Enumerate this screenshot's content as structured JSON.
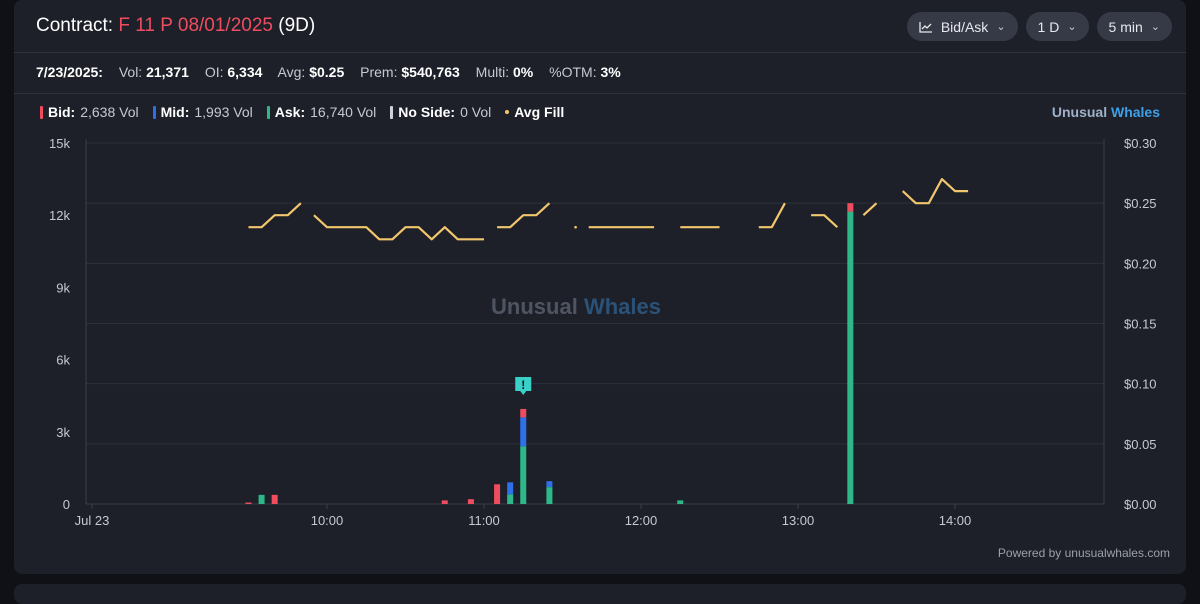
{
  "header": {
    "title_prefix": "Contract:",
    "contract": "F 11 P 08/01/2025",
    "days": "(9D)",
    "controls": [
      {
        "label": "Bid/Ask",
        "icon": "line-chart-icon"
      },
      {
        "label": "1 D"
      },
      {
        "label": "5 min"
      }
    ]
  },
  "stats": {
    "date": "7/23/2025:",
    "vol_label": "Vol:",
    "vol": "21,371",
    "oi_label": "OI:",
    "oi": "6,334",
    "avg_label": "Avg:",
    "avg": "$0.25",
    "prem_label": "Prem:",
    "prem": "$540,763",
    "multi_label": "Multi:",
    "multi": "0%",
    "otm_label": "%OTM:",
    "otm": "3%"
  },
  "legend": {
    "bid_label": "Bid:",
    "bid_value": "2,638 Vol",
    "mid_label": "Mid:",
    "mid_value": "1,993 Vol",
    "ask_label": "Ask:",
    "ask_value": "16,740 Vol",
    "noside_label": "No Side:",
    "noside_value": "0 Vol",
    "avgfill_label": "Avg Fill"
  },
  "brand": {
    "w1": "Unusual",
    "w2": "Whales"
  },
  "watermark": {
    "w1": "Unusual",
    "w2": "Whales"
  },
  "footer": "Powered by unusualwhales.com",
  "colors": {
    "bid": "#ef4c5f",
    "mid": "#2f6fe8",
    "ask": "#2eb88a",
    "noside": "#cfd2d9",
    "avg_fill": "#f2c66d"
  },
  "chart_data": {
    "type": "bar",
    "x_ticks": [
      "Jul 23",
      "10:00",
      "11:00",
      "12:00",
      "13:00",
      "14:00"
    ],
    "y_left_ticks": [
      "0",
      "3k",
      "6k",
      "9k",
      "12k",
      "15k"
    ],
    "y_right_ticks": [
      "$0.00",
      "$0.05",
      "$0.10",
      "$0.15",
      "$0.20",
      "$0.25",
      "$0.30"
    ],
    "ylim_left": [
      0,
      15000
    ],
    "ylim_right": [
      0,
      0.3
    ],
    "alert_marker": {
      "time": "11:15",
      "label": "!"
    },
    "bars": [
      {
        "time": "09:30",
        "ask": 0,
        "mid": 0,
        "bid": 60
      },
      {
        "time": "09:35",
        "ask": 380,
        "mid": 0,
        "bid": 0
      },
      {
        "time": "09:40",
        "ask": 0,
        "mid": 0,
        "bid": 380
      },
      {
        "time": "10:45",
        "ask": 0,
        "mid": 0,
        "bid": 150
      },
      {
        "time": "10:55",
        "ask": 0,
        "mid": 0,
        "bid": 200
      },
      {
        "time": "11:05",
        "ask": 0,
        "mid": 0,
        "bid": 820
      },
      {
        "time": "11:10",
        "ask": 400,
        "mid": 500,
        "bid": 0
      },
      {
        "time": "11:15",
        "ask": 2400,
        "mid": 1200,
        "bid": 350
      },
      {
        "time": "11:25",
        "ask": 700,
        "mid": 250,
        "bid": 0
      },
      {
        "time": "12:15",
        "ask": 150,
        "mid": 0,
        "bid": 0
      },
      {
        "time": "13:20",
        "ask": 12150,
        "mid": 0,
        "bid": 350
      }
    ],
    "avg_fill": [
      [
        [
          "09:30",
          0.23
        ],
        [
          "09:35",
          0.23
        ],
        [
          "09:40",
          0.24
        ],
        [
          "09:45",
          0.24
        ],
        [
          "09:50",
          0.25
        ]
      ],
      [
        [
          "09:55",
          0.24
        ],
        [
          "10:00",
          0.23
        ],
        [
          "10:05",
          0.23
        ],
        [
          "10:10",
          0.23
        ],
        [
          "10:15",
          0.23
        ],
        [
          "10:20",
          0.22
        ],
        [
          "10:25",
          0.22
        ],
        [
          "10:30",
          0.23
        ],
        [
          "10:35",
          0.23
        ],
        [
          "10:40",
          0.22
        ],
        [
          "10:45",
          0.23
        ],
        [
          "10:50",
          0.22
        ],
        [
          "10:55",
          0.22
        ],
        [
          "11:00",
          0.22
        ]
      ],
      [
        [
          "11:05",
          0.23
        ],
        [
          "11:10",
          0.23
        ],
        [
          "11:15",
          0.24
        ],
        [
          "11:20",
          0.24
        ],
        [
          "11:25",
          0.25
        ]
      ],
      [
        [
          "11:35",
          0.23
        ]
      ],
      [
        [
          "11:40",
          0.23
        ],
        [
          "11:45",
          0.23
        ],
        [
          "11:50",
          0.23
        ],
        [
          "11:55",
          0.23
        ],
        [
          "12:00",
          0.23
        ],
        [
          "12:05",
          0.23
        ]
      ],
      [
        [
          "12:15",
          0.23
        ],
        [
          "12:20",
          0.23
        ],
        [
          "12:25",
          0.23
        ],
        [
          "12:30",
          0.23
        ]
      ],
      [
        [
          "12:45",
          0.23
        ],
        [
          "12:50",
          0.23
        ],
        [
          "12:55",
          0.25
        ]
      ],
      [
        [
          "13:05",
          0.24
        ],
        [
          "13:10",
          0.24
        ],
        [
          "13:15",
          0.23
        ]
      ],
      [
        [
          "13:25",
          0.24
        ],
        [
          "13:30",
          0.25
        ]
      ],
      [
        [
          "13:40",
          0.26
        ],
        [
          "13:45",
          0.25
        ],
        [
          "13:50",
          0.25
        ],
        [
          "13:55",
          0.27
        ],
        [
          "14:00",
          0.26
        ],
        [
          "14:05",
          0.26
        ]
      ]
    ]
  }
}
